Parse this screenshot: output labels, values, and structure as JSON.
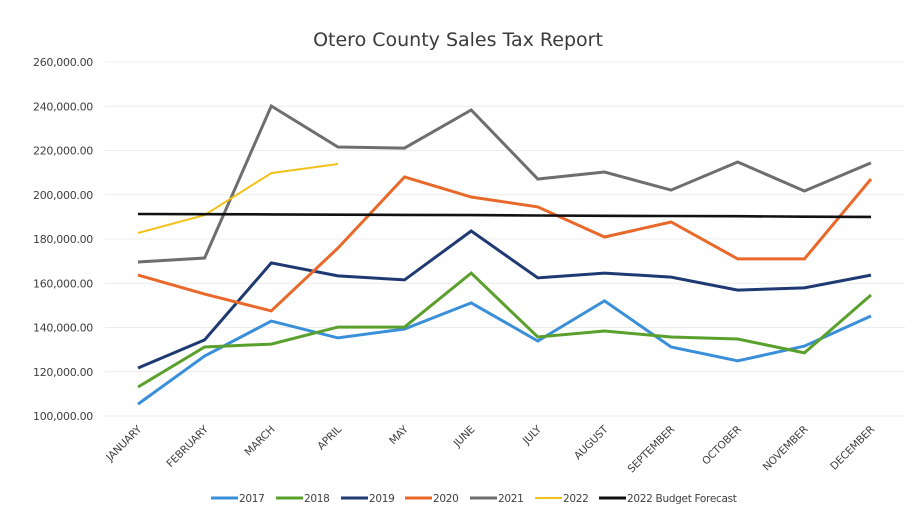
{
  "chart_data": {
    "type": "line",
    "title": "Otero County Sales Tax Report",
    "xlabel": "",
    "ylabel": "",
    "ylim": [
      100000,
      260000
    ],
    "yticks": [
      100000,
      120000,
      140000,
      160000,
      180000,
      200000,
      220000,
      240000,
      260000
    ],
    "ytick_labels": [
      "100,000.00",
      "120,000.00",
      "140,000.00",
      "160,000.00",
      "180,000.00",
      "200,000.00",
      "220,000.00",
      "240,000.00",
      "260,000.00"
    ],
    "grid": true,
    "legend_position": "bottom",
    "categories": [
      "JANUARY",
      "FEBRUARY",
      "MARCH",
      "APRIL",
      "MAY",
      "JUNE",
      "JULY",
      "AUGUST",
      "SEPTEMBER",
      "OCTOBER",
      "NOVEMBER",
      "DECEMBER"
    ],
    "series": [
      {
        "name": "2017",
        "color": "#3a8fd9",
        "values": [
          105400,
          127100,
          142900,
          135300,
          139300,
          151100,
          133900,
          152000,
          131200,
          124900,
          131600,
          145200
        ]
      },
      {
        "name": "2018",
        "color": "#5aa02c",
        "values": [
          113100,
          131200,
          132500,
          140200,
          140200,
          164600,
          135700,
          138400,
          135700,
          134800,
          128500,
          154700
        ]
      },
      {
        "name": "2019",
        "color": "#1f3a73",
        "values": [
          121700,
          134400,
          169200,
          163300,
          161500,
          183600,
          162400,
          164600,
          162800,
          156900,
          157900,
          163700
        ]
      },
      {
        "name": "2020",
        "color": "#e8692a",
        "values": [
          163700,
          155100,
          147500,
          175900,
          208000,
          199000,
          194500,
          180900,
          187700,
          171000,
          171000,
          207100
        ]
      },
      {
        "name": "2021",
        "color": "#6e6e6e",
        "values": [
          169600,
          171400,
          240100,
          221600,
          221100,
          238300,
          207100,
          210300,
          202100,
          214800,
          201700,
          214400
        ]
      },
      {
        "name": "2022",
        "color": "#f2c21b",
        "values": [
          182700,
          190800,
          209800,
          213900,
          null,
          null,
          null,
          null,
          null,
          null,
          null,
          null
        ]
      },
      {
        "name": "2022 Budget Forecast",
        "color": "#111111",
        "values": [
          191300,
          191200,
          191100,
          191000,
          190900,
          190800,
          190600,
          190500,
          190400,
          190300,
          190100,
          190000
        ]
      }
    ]
  }
}
